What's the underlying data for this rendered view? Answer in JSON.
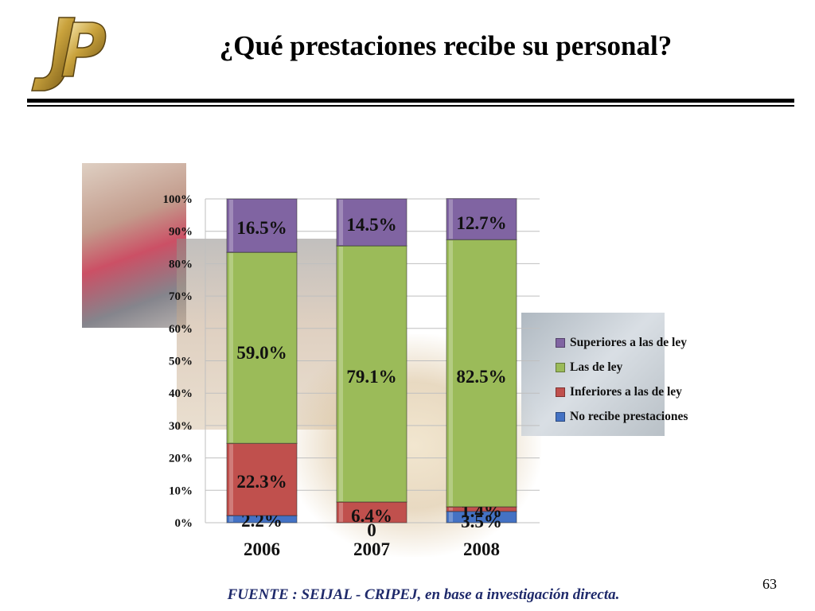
{
  "slide": {
    "title": "¿Qué prestaciones recibe su personal?",
    "source": "FUENTE :  SEIJAL - CRIPEJ,  en base a investigación directa.",
    "page_number": "63",
    "logo_text": "JP"
  },
  "chart_data": {
    "type": "bar",
    "stacked": true,
    "percent_stacked": true,
    "categories": [
      "2006",
      "2007",
      "2008"
    ],
    "ylim": [
      0,
      100
    ],
    "yticks": [
      "0%",
      "10%",
      "20%",
      "30%",
      "40%",
      "50%",
      "60%",
      "70%",
      "80%",
      "90%",
      "100%"
    ],
    "grid": true,
    "legend_position": "right",
    "series": [
      {
        "name": "No recibe prestaciones",
        "color": "#4472c4",
        "values": [
          2.2,
          0,
          3.5
        ],
        "labels": [
          "2.2%",
          "0",
          "3.5%"
        ]
      },
      {
        "name": "Inferiores a las de ley",
        "color": "#c0504d",
        "values": [
          22.3,
          6.4,
          1.4
        ],
        "labels": [
          "22.3%",
          "6.4%",
          "1.4%"
        ]
      },
      {
        "name": "Las de ley",
        "color": "#9bbb59",
        "values": [
          59.0,
          79.1,
          82.5
        ],
        "labels": [
          "59.0%",
          "79.1%",
          "82.5%"
        ]
      },
      {
        "name": "Superiores a las de ley",
        "color": "#8064a2",
        "values": [
          16.5,
          14.5,
          12.7
        ],
        "labels": [
          "16.5%",
          "14.5%",
          "12.7%"
        ]
      }
    ]
  }
}
